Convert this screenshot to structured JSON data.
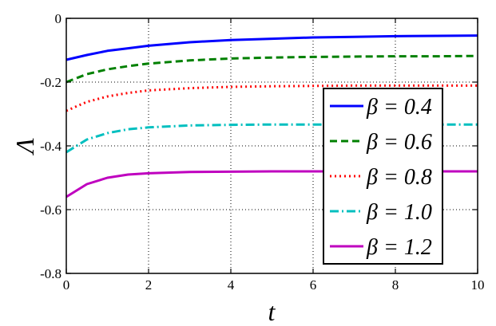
{
  "chart_data": {
    "type": "line",
    "title": "",
    "xlabel": "t",
    "ylabel": "Λ",
    "xlim": [
      0,
      10
    ],
    "ylim": [
      -0.8,
      0
    ],
    "xticks": [
      0,
      2,
      4,
      6,
      8,
      10
    ],
    "yticks": [
      -0.8,
      -0.6,
      -0.4,
      -0.2,
      0
    ],
    "xtick_labels": [
      "0",
      "2",
      "4",
      "6",
      "8",
      "10"
    ],
    "ytick_labels": [
      "-0.8",
      "-0.6",
      "-0.4",
      "-0.2",
      "0"
    ],
    "grid": true,
    "legend_position": "right",
    "series": [
      {
        "name": "β = 0.4",
        "color": "#0000ff",
        "style": "solid",
        "x": [
          0,
          0.5,
          1,
          1.5,
          2,
          3,
          4,
          5,
          6,
          7,
          8,
          9,
          10
        ],
        "y": [
          -0.13,
          -0.115,
          -0.102,
          -0.094,
          -0.086,
          -0.075,
          -0.068,
          -0.064,
          -0.06,
          -0.058,
          -0.056,
          -0.055,
          -0.054
        ]
      },
      {
        "name": "β = 0.6",
        "color": "#008000",
        "style": "dashed",
        "x": [
          0,
          0.5,
          1,
          1.5,
          2,
          3,
          4,
          5,
          6,
          7,
          8,
          9,
          10
        ],
        "y": [
          -0.2,
          -0.175,
          -0.16,
          -0.15,
          -0.142,
          -0.132,
          -0.126,
          -0.123,
          -0.121,
          -0.12,
          -0.119,
          -0.119,
          -0.118
        ]
      },
      {
        "name": "β = 0.8",
        "color": "#ff0000",
        "style": "dotted",
        "x": [
          0,
          0.5,
          1,
          1.5,
          2,
          3,
          4,
          5,
          6,
          7,
          8,
          9,
          10
        ],
        "y": [
          -0.29,
          -0.262,
          -0.245,
          -0.234,
          -0.226,
          -0.219,
          -0.215,
          -0.213,
          -0.212,
          -0.211,
          -0.211,
          -0.211,
          -0.211
        ]
      },
      {
        "name": "β = 1.0",
        "color": "#00bfbf",
        "style": "dashdot",
        "x": [
          0,
          0.5,
          1,
          1.5,
          2,
          3,
          4,
          5,
          6,
          7,
          8,
          9,
          10
        ],
        "y": [
          -0.42,
          -0.38,
          -0.36,
          -0.348,
          -0.342,
          -0.336,
          -0.334,
          -0.333,
          -0.333,
          -0.333,
          -0.333,
          -0.333,
          -0.333
        ]
      },
      {
        "name": "β = 1.2",
        "color": "#bf00bf",
        "style": "solid",
        "x": [
          0,
          0.5,
          1,
          1.5,
          2,
          3,
          4,
          5,
          6,
          7,
          8,
          9,
          10
        ],
        "y": [
          -0.56,
          -0.52,
          -0.5,
          -0.49,
          -0.486,
          -0.482,
          -0.481,
          -0.48,
          -0.48,
          -0.48,
          -0.48,
          -0.48,
          -0.48
        ]
      }
    ]
  }
}
